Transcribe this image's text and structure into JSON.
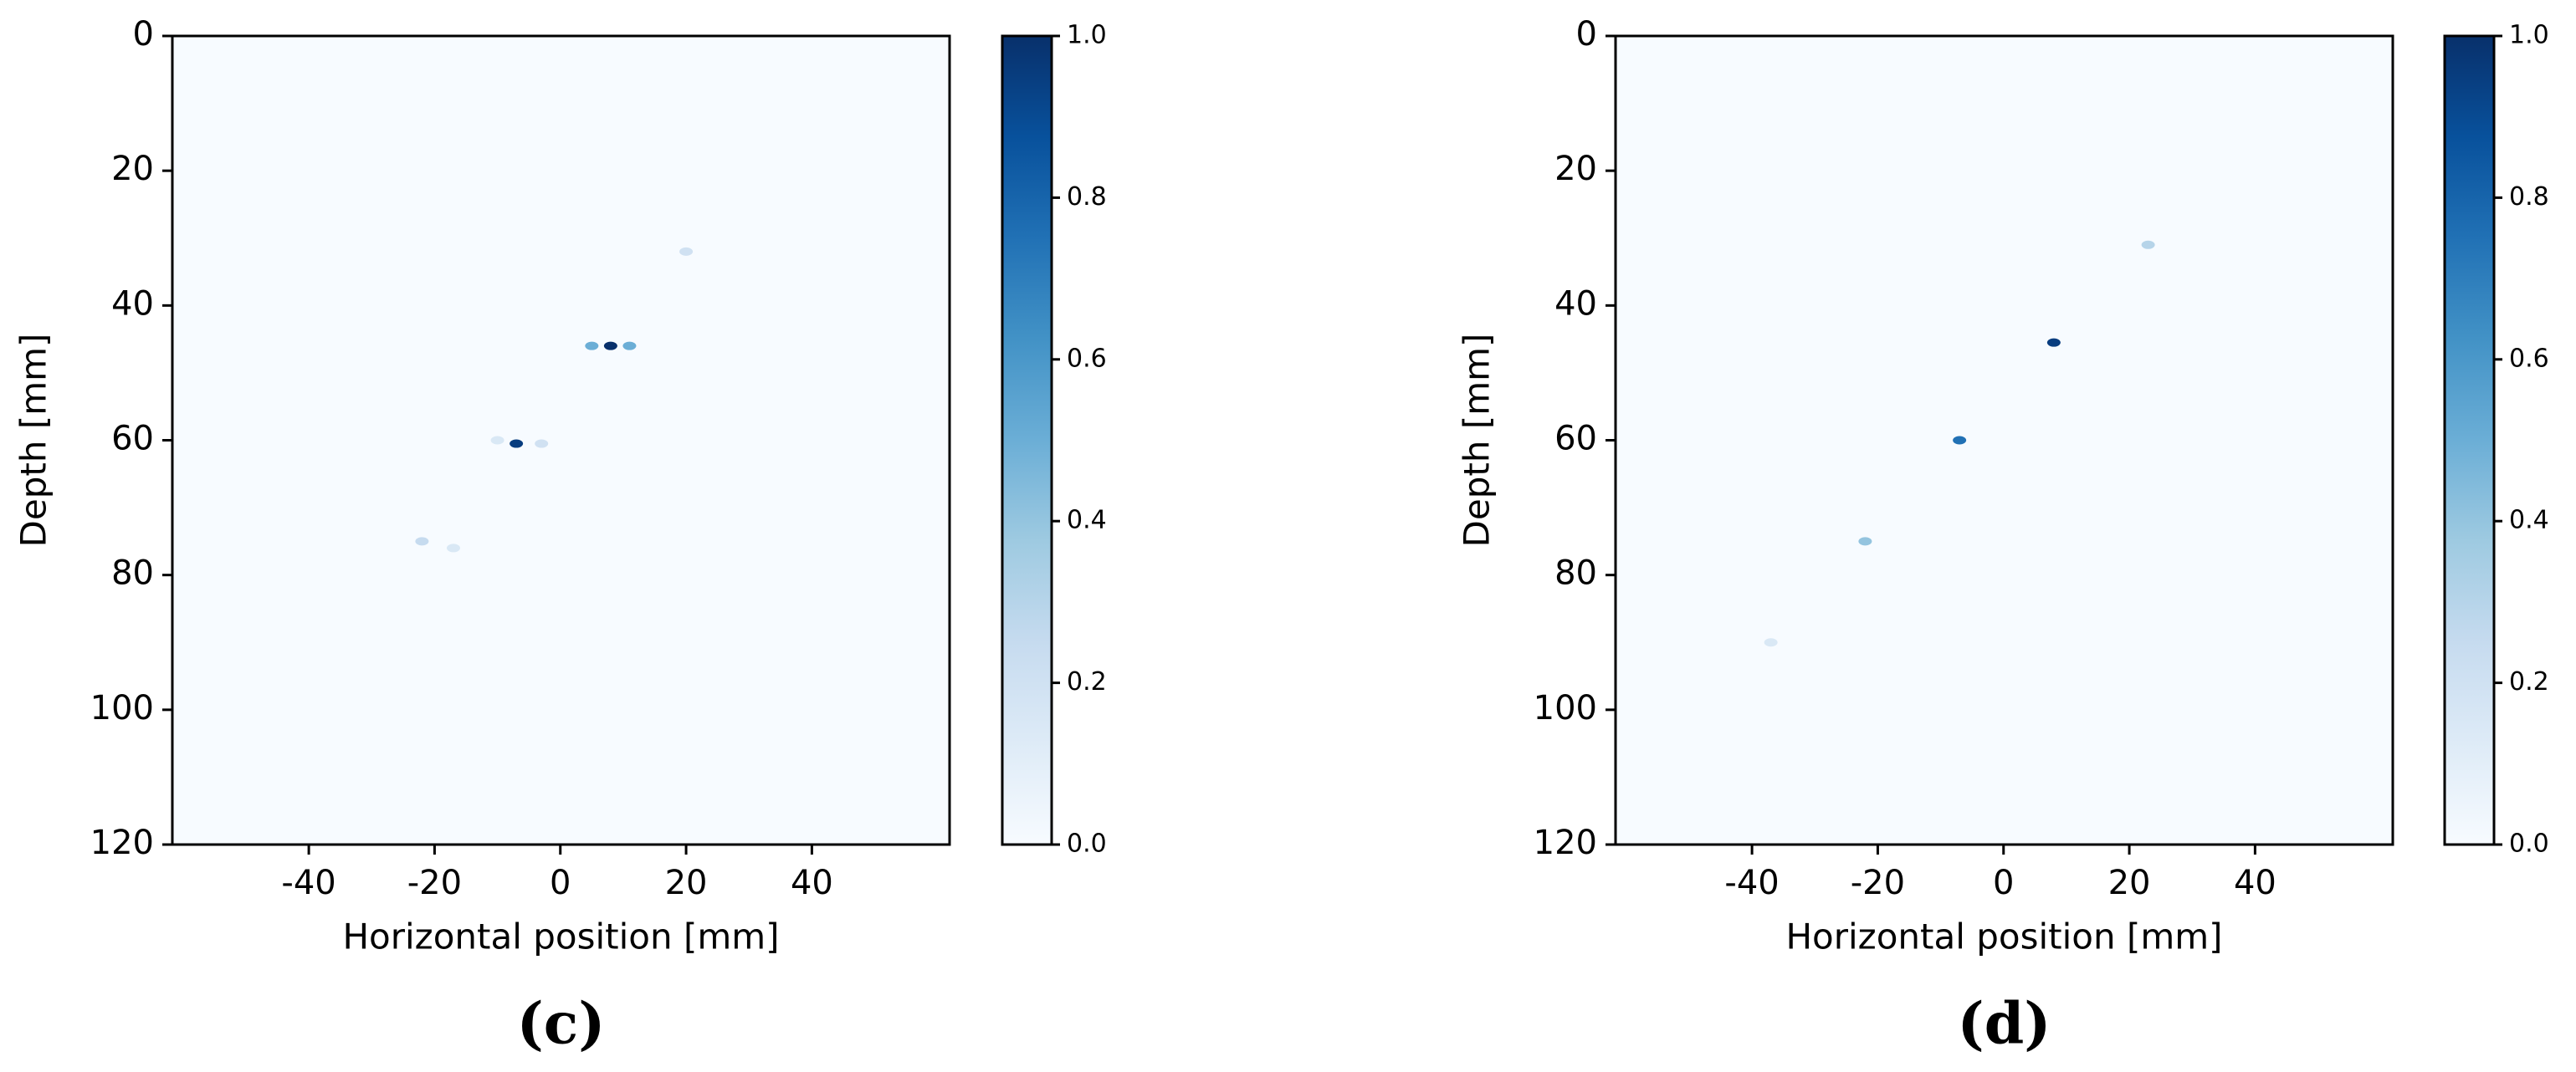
{
  "chart_data": [
    {
      "type": "image",
      "caption": "(c)",
      "xlabel": "Horizontal position [mm]",
      "ylabel": "Depth [mm]",
      "xlim": [
        -61.7,
        61.9
      ],
      "ylim": [
        120,
        0
      ],
      "xticks": [
        -40,
        -20,
        0,
        20,
        40
      ],
      "yticks": [
        0,
        20,
        40,
        60,
        80,
        100,
        120
      ],
      "colormap": "Blues",
      "clim": [
        0,
        1
      ],
      "cticks": [
        {
          "value": 0,
          "label": "0.0"
        },
        0.2,
        0.4,
        0.6,
        0.8,
        {
          "value": 1,
          "label": "1.0"
        }
      ],
      "points": {
        "x": [
          20,
          5,
          8,
          11,
          -10,
          -7,
          -3,
          -22,
          -17
        ],
        "y": [
          32,
          46,
          46,
          46,
          60,
          60.5,
          60.5,
          75,
          76
        ],
        "values": [
          0.2,
          0.5,
          1.0,
          0.5,
          0.15,
          0.95,
          0.2,
          0.25,
          0.15
        ]
      }
    },
    {
      "type": "image",
      "caption": "(d)",
      "xlabel": "Horizontal position [mm]",
      "ylabel": "Depth [mm]",
      "xlim": [
        -61.7,
        61.9
      ],
      "ylim": [
        120,
        0
      ],
      "xticks": [
        -40,
        -20,
        0,
        20,
        40
      ],
      "yticks": [
        0,
        20,
        40,
        60,
        80,
        100,
        120
      ],
      "colormap": "Blues",
      "clim": [
        0,
        1
      ],
      "cticks": [
        {
          "value": 0,
          "label": "0.0"
        },
        0.2,
        0.4,
        0.6,
        0.8,
        {
          "value": 1,
          "label": "1.0"
        }
      ],
      "points": {
        "x": [
          23,
          8,
          -7,
          -22,
          -37
        ],
        "y": [
          31,
          45.5,
          60,
          75,
          90
        ],
        "values": [
          0.3,
          0.95,
          0.75,
          0.4,
          0.15
        ]
      }
    }
  ]
}
